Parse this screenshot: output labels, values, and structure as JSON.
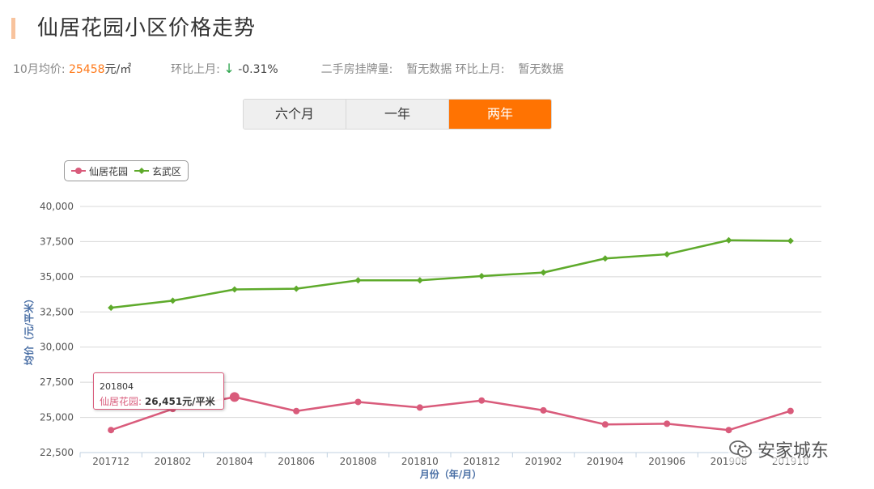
{
  "header": {
    "title": "仙居花园小区价格走势"
  },
  "stats": {
    "avg_label": "10月均价:",
    "avg_value": "25458",
    "avg_unit": "元/㎡",
    "mom_label": "环比上月:",
    "mom_arrow": "↓",
    "mom_value": "-0.31%",
    "listing_label": "二手房挂牌量:",
    "listing_value": "暂无数据",
    "listing_mom_label": "环比上月:",
    "listing_mom_value": "暂无数据"
  },
  "tabs": [
    {
      "label": "六个月",
      "active": false
    },
    {
      "label": "一年",
      "active": false
    },
    {
      "label": "两年",
      "active": true
    }
  ],
  "tooltip": {
    "date": "201804",
    "series": "仙居花园:",
    "value": "26,451元/平米"
  },
  "watermark": {
    "text": "安家城东",
    "icon": "wechat-icon"
  },
  "colors": {
    "series1": "#d95b7b",
    "series2": "#5eaa2b",
    "accent": "#ff7302"
  },
  "chart_data": {
    "type": "line",
    "xlabel": "月份（年/月）",
    "ylabel": "均价（元/平米）",
    "ylim": [
      22500,
      40000
    ],
    "yticks": [
      22500,
      25000,
      27500,
      30000,
      32500,
      35000,
      37500,
      40000
    ],
    "ytick_labels": [
      "22,500",
      "25,000",
      "27,500",
      "30,000",
      "32,500",
      "35,000",
      "37,500",
      "40,000"
    ],
    "categories": [
      "201712",
      "201802",
      "201804",
      "201806",
      "201808",
      "201810",
      "201812",
      "201902",
      "201904",
      "201906",
      "201908",
      "201910"
    ],
    "grid": true,
    "legend": "top-left",
    "series": [
      {
        "name": "仙居花园",
        "color": "#d95b7b",
        "marker": "circle",
        "values": [
          24100,
          25600,
          26451,
          25450,
          26100,
          25700,
          26200,
          25500,
          24500,
          24550,
          24100,
          25458
        ]
      },
      {
        "name": "玄武区",
        "color": "#5eaa2b",
        "marker": "diamond",
        "values": [
          32800,
          33300,
          34100,
          34150,
          34750,
          34750,
          35050,
          35300,
          36300,
          36600,
          37600,
          37550
        ]
      }
    ]
  }
}
